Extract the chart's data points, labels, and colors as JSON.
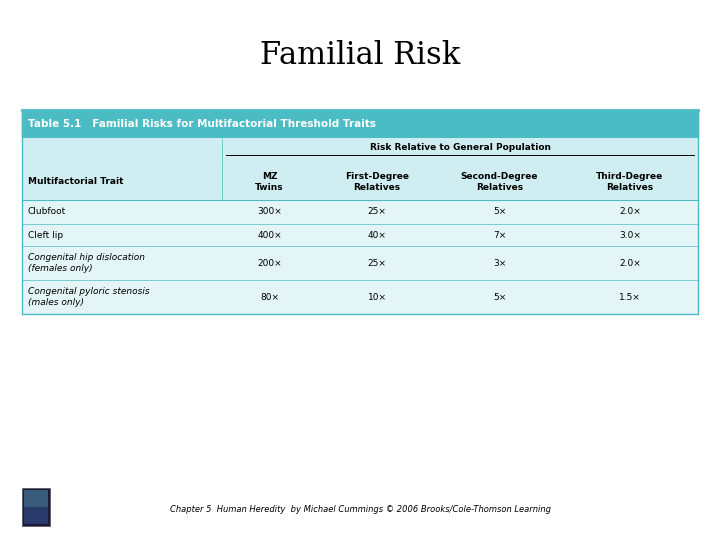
{
  "title": "Familial Risk",
  "table_title": "Table 5.1   Familial Risks for Multifactorial Threshold Traits",
  "subheader": "Risk Relative to General Population",
  "col_headers": [
    "Multifactorial Trait",
    "MZ\nTwins",
    "First-Degree\nRelatives",
    "Second-Degree\nRelatives",
    "Third-Degree\nRelatives"
  ],
  "rows": [
    [
      "Clubfoot",
      "300×",
      "25×",
      "5×",
      "2.0×"
    ],
    [
      "Cleft lip",
      "400×",
      "40×",
      "7×",
      "3.0×"
    ],
    [
      "Congenital hip dislocation\n(females only)",
      "200×",
      "25×",
      "3×",
      "2.0×"
    ],
    [
      "Congenital pyloric stenosis\n(males only)",
      "80×",
      "10×",
      "5×",
      "1.5×"
    ]
  ],
  "footer": "Chapter 5  Human Heredity  by Michael Cummings © 2006 Brooks/Cole-Thomson Learning",
  "bg_color": "#ffffff",
  "table_header_bg": "#4bbcc4",
  "table_light_bg": "#d0eef1",
  "table_body_bg": "#e4f5f7",
  "table_border_color": "#4bbcc4",
  "title_fontsize": 22,
  "table_title_fontsize": 7.5,
  "col_header_fontsize": 6.5,
  "cell_fontsize": 6.5,
  "footer_fontsize": 6
}
